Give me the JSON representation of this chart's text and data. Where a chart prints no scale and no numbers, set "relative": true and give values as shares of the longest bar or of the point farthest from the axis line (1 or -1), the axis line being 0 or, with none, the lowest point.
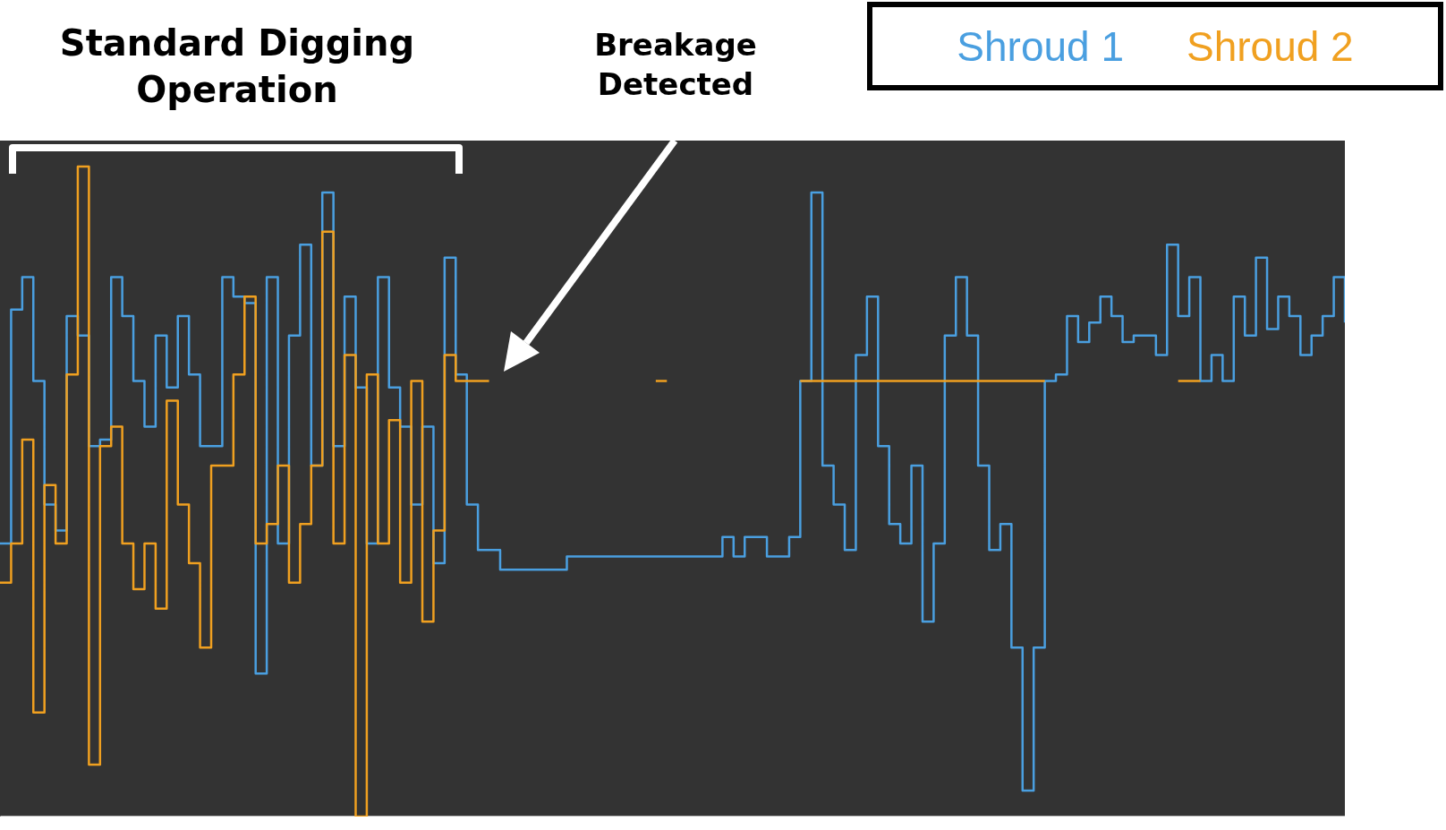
{
  "chart_data": {
    "type": "step",
    "relative": true,
    "annotations": [
      "Standard Digging Operation",
      "Breakage Detected"
    ],
    "categories": [
      null,
      null,
      null,
      null,
      null,
      null,
      null,
      null,
      null,
      null,
      null,
      null,
      null,
      null,
      null,
      null,
      null,
      null,
      null,
      null,
      null,
      null,
      null,
      null,
      null,
      null,
      null,
      null,
      null,
      null,
      null,
      null,
      null,
      null,
      null,
      null,
      null,
      null,
      null,
      null,
      null,
      null,
      null,
      null,
      null,
      null,
      null,
      null,
      null,
      null,
      null,
      null,
      null,
      null,
      null,
      null,
      null,
      null,
      null,
      null,
      null,
      null,
      null,
      null,
      null,
      null,
      null,
      null,
      null,
      null,
      null,
      null,
      null,
      null,
      null,
      null,
      null,
      null,
      null,
      null,
      null,
      null,
      null,
      null,
      null,
      null,
      null,
      null,
      null,
      null,
      null,
      null,
      null,
      null,
      null,
      null,
      null,
      null,
      null,
      null,
      null,
      null,
      null,
      null,
      null,
      null,
      null,
      null,
      null,
      null,
      null,
      null,
      null,
      null,
      null,
      null,
      null,
      null,
      null,
      null,
      null,
      null
    ],
    "series": [
      {
        "name": "Shroud 1",
        "color": "#4a9fe0",
        "values": [
          0.42,
          0.78,
          0.83,
          0.67,
          0.48,
          0.44,
          0.77,
          0.74,
          0.57,
          0.58,
          0.83,
          0.77,
          0.67,
          0.6,
          0.74,
          0.66,
          0.77,
          0.68,
          0.57,
          0.57,
          0.83,
          0.8,
          0.79,
          0.22,
          0.83,
          0.42,
          0.74,
          0.88,
          0.54,
          0.96,
          0.57,
          0.8,
          0.66,
          0.42,
          0.83,
          0.66,
          0.6,
          0.48,
          0.6,
          0.39,
          0.86,
          0.68,
          0.48,
          0.41,
          0.41,
          0.38,
          0.38,
          0.38,
          0.38,
          0.38,
          0.38,
          0.4,
          0.4,
          0.4,
          0.4,
          0.4,
          0.4,
          0.4,
          0.4,
          0.4,
          0.4,
          0.4,
          0.4,
          0.4,
          0.4,
          0.43,
          0.4,
          0.43,
          0.43,
          0.4,
          0.4,
          0.43,
          0.67,
          0.96,
          0.54,
          0.48,
          0.41,
          0.71,
          0.8,
          0.57,
          0.45,
          0.42,
          0.54,
          0.3,
          0.42,
          0.74,
          0.83,
          0.74,
          0.54,
          0.41,
          0.45,
          0.26,
          0.04,
          0.26,
          0.67,
          0.68,
          0.77,
          0.73,
          0.76,
          0.8,
          0.77,
          0.73,
          0.74,
          0.74,
          0.71,
          0.88,
          0.77,
          0.83,
          0.67,
          0.71,
          0.67,
          0.8,
          0.74,
          0.86,
          0.75,
          0.8,
          0.77,
          0.71,
          0.74,
          0.77,
          0.83,
          0.76
        ]
      },
      {
        "name": "Shroud 2",
        "color": "#f0a020",
        "values": [
          0.36,
          0.42,
          0.58,
          0.16,
          0.51,
          0.42,
          0.68,
          1.0,
          0.08,
          0.57,
          0.6,
          0.42,
          0.35,
          0.42,
          0.32,
          0.64,
          0.48,
          0.39,
          0.26,
          0.54,
          0.54,
          0.68,
          0.8,
          0.42,
          0.45,
          0.54,
          0.36,
          0.45,
          0.54,
          0.9,
          0.42,
          0.71,
          0,
          0.68,
          0.42,
          0.61,
          0.36,
          0.67,
          0.3,
          0.44,
          0.71,
          0.67,
          0.67,
          0.67,
          0.67,
          null,
          null,
          null,
          null,
          null,
          null,
          null,
          null,
          null,
          null,
          null,
          null,
          null,
          null,
          0.67,
          0.67,
          null,
          null,
          null,
          null,
          null,
          null,
          null,
          null,
          null,
          null,
          null,
          0.67,
          0.67,
          0.67,
          0.67,
          0.67,
          0.67,
          0.67,
          0.67,
          0.67,
          0.67,
          0.67,
          0.67,
          0.67,
          0.67,
          0.67,
          0.67,
          0.67,
          0.67,
          0.67,
          0.67,
          0.67,
          0.67,
          0.67,
          null,
          null,
          null,
          null,
          null,
          null,
          null,
          null,
          null,
          null,
          null,
          0.67,
          0.67,
          0.67,
          null,
          null,
          null,
          null,
          null,
          null,
          null,
          null,
          null,
          null,
          null,
          null,
          null
        ]
      }
    ]
  }
}
